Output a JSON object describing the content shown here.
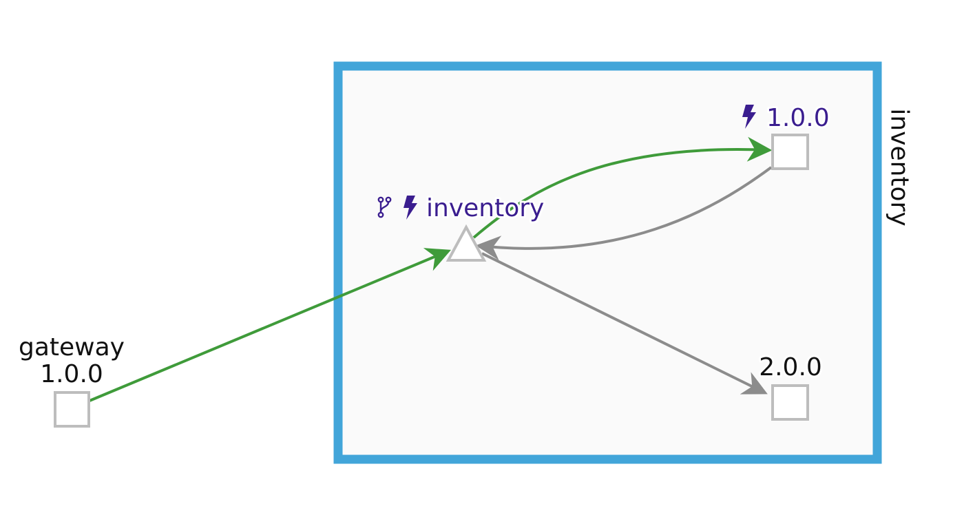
{
  "colors": {
    "box_border": "#42a5d9",
    "box_fill": "#fafafa",
    "edge_ok": "#3f9b3a",
    "edge_idle": "#8c8c8c",
    "node_stroke": "#bdbdbd",
    "label_purple": "#3a1d8f"
  },
  "box": {
    "title": "inventory"
  },
  "nodes": {
    "gateway": {
      "name": "gateway",
      "version": "1.0.0",
      "shape": "square"
    },
    "inventory_service": {
      "name": "inventory",
      "shape": "triangle",
      "icons": [
        "branch-icon",
        "lightning-icon"
      ]
    },
    "inventory_v1": {
      "version": "1.0.0",
      "shape": "square",
      "icons": [
        "lightning-icon"
      ]
    },
    "inventory_v2": {
      "version": "2.0.0",
      "shape": "square"
    }
  },
  "edges": [
    {
      "from": "gateway",
      "to": "inventory_service",
      "status": "ok"
    },
    {
      "from": "inventory_service",
      "to": "inventory_v1",
      "status": "ok"
    },
    {
      "from": "inventory_v1",
      "to": "inventory_service",
      "status": "idle"
    },
    {
      "from": "inventory_service",
      "to": "inventory_v2",
      "status": "idle"
    }
  ]
}
